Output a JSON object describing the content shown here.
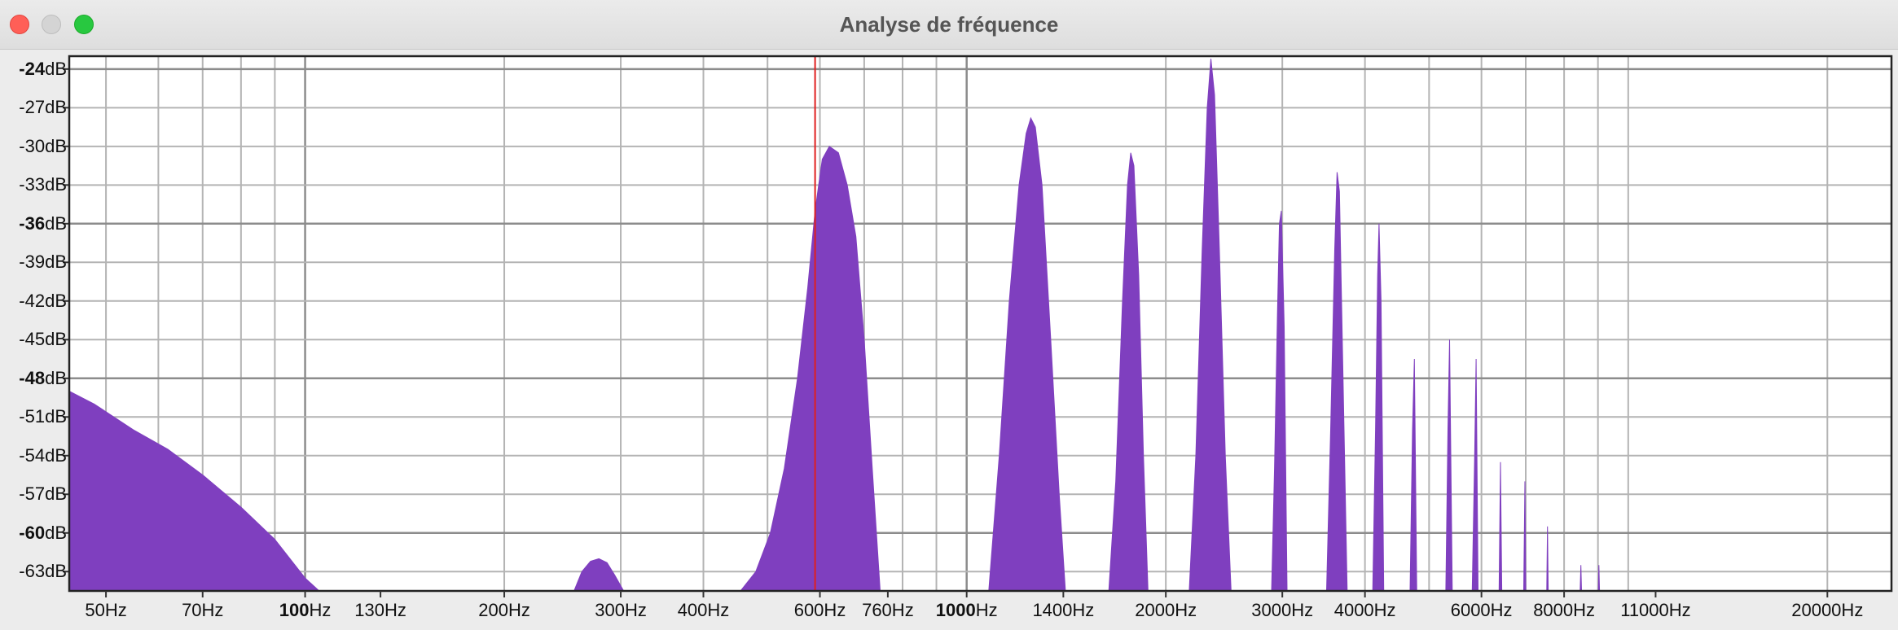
{
  "window": {
    "title": "Analyse de fréquence",
    "buttons": [
      "close",
      "minimize",
      "maximize"
    ]
  },
  "colors": {
    "fill": "#7f3fbf",
    "grid": "#b4b4b4",
    "grid_major": "#8c8c8c",
    "cursor": "#e02020",
    "plot_bg": "#ffffff"
  },
  "chart_data": {
    "type": "area",
    "scale_x": "log",
    "xlim": [
      44,
      25000
    ],
    "ylim": [
      -64.5,
      -23
    ],
    "grid": true,
    "cursor_hz": 590,
    "y_ticks": [
      {
        "value": -24,
        "num": "-24",
        "unit": "dB",
        "major": true
      },
      {
        "value": -27,
        "num": "-27",
        "unit": "dB",
        "major": false
      },
      {
        "value": -30,
        "num": "-30",
        "unit": "dB",
        "major": false
      },
      {
        "value": -33,
        "num": "-33",
        "unit": "dB",
        "major": false
      },
      {
        "value": -36,
        "num": "-36",
        "unit": "dB",
        "major": true
      },
      {
        "value": -39,
        "num": "-39",
        "unit": "dB",
        "major": false
      },
      {
        "value": -42,
        "num": "-42",
        "unit": "dB",
        "major": false
      },
      {
        "value": -45,
        "num": "-45",
        "unit": "dB",
        "major": false
      },
      {
        "value": -48,
        "num": "-48",
        "unit": "dB",
        "major": true
      },
      {
        "value": -51,
        "num": "-51",
        "unit": "dB",
        "major": false
      },
      {
        "value": -54,
        "num": "-54",
        "unit": "dB",
        "major": false
      },
      {
        "value": -57,
        "num": "-57",
        "unit": "dB",
        "major": false
      },
      {
        "value": -60,
        "num": "-60",
        "unit": "dB",
        "major": true
      },
      {
        "value": -63,
        "num": "-63",
        "unit": "dB",
        "major": false
      }
    ],
    "x_ticks": [
      {
        "value": 50,
        "num": "50",
        "unit": "Hz",
        "major": false
      },
      {
        "value": 70,
        "num": "70",
        "unit": "Hz",
        "major": false
      },
      {
        "value": 100,
        "num": "100",
        "unit": "Hz",
        "major": true
      },
      {
        "value": 130,
        "num": "130",
        "unit": "Hz",
        "major": false
      },
      {
        "value": 200,
        "num": "200",
        "unit": "Hz",
        "major": false
      },
      {
        "value": 300,
        "num": "300",
        "unit": "Hz",
        "major": false
      },
      {
        "value": 400,
        "num": "400",
        "unit": "Hz",
        "major": false
      },
      {
        "value": 600,
        "num": "600",
        "unit": "Hz",
        "major": false
      },
      {
        "value": 760,
        "num": "760",
        "unit": "Hz",
        "major": false
      },
      {
        "value": 1000,
        "num": "1000",
        "unit": "Hz",
        "major": true
      },
      {
        "value": 1400,
        "num": "1400",
        "unit": "Hz",
        "major": false
      },
      {
        "value": 2000,
        "num": "2000",
        "unit": "Hz",
        "major": false
      },
      {
        "value": 3000,
        "num": "3000",
        "unit": "Hz",
        "major": false
      },
      {
        "value": 4000,
        "num": "4000",
        "unit": "Hz",
        "major": false
      },
      {
        "value": 6000,
        "num": "6000",
        "unit": "Hz",
        "major": false
      },
      {
        "value": 8000,
        "num": "8000",
        "unit": "Hz",
        "major": false
      },
      {
        "value": 11000,
        "num": "11000",
        "unit": "Hz",
        "major": false
      },
      {
        "value": 20000,
        "num": "20000",
        "unit": "Hz",
        "major": false
      }
    ],
    "x_grid": [
      50,
      60,
      70,
      80,
      90,
      100,
      200,
      300,
      400,
      500,
      600,
      700,
      800,
      900,
      1000,
      2000,
      3000,
      4000,
      5000,
      6000,
      7000,
      8000,
      9000,
      10000,
      20000
    ],
    "series": [
      {
        "x": [
          44,
          48,
          55,
          62,
          70,
          80,
          90,
          100,
          105
        ],
        "y": [
          -49,
          -50,
          -52,
          -53.5,
          -55.5,
          -58,
          -60.5,
          -63.5,
          -64.5
        ]
      },
      {
        "x": [
          255,
          262,
          270,
          278,
          286,
          294,
          303
        ],
        "y": [
          -64.5,
          -63,
          -62.2,
          -62,
          -62.3,
          -63.3,
          -64.5
        ]
      },
      {
        "x": [
          455,
          480,
          505,
          530,
          555,
          575,
          590,
          605,
          620,
          640,
          660,
          680,
          700,
          720,
          740
        ],
        "y": [
          -64.5,
          -63,
          -60,
          -55,
          -48,
          -41,
          -35,
          -31,
          -30,
          -30.5,
          -33,
          -37,
          -45,
          -55,
          -64.5
        ]
      },
      {
        "x": [
          1080,
          1120,
          1160,
          1200,
          1230,
          1250,
          1270,
          1300,
          1340,
          1380,
          1410
        ],
        "y": [
          -64.5,
          -54,
          -42,
          -33,
          -29,
          -27.8,
          -28.5,
          -33,
          -45,
          -57,
          -64.5
        ]
      },
      {
        "x": [
          1640,
          1680,
          1720,
          1750,
          1770,
          1790,
          1820,
          1850,
          1880
        ],
        "y": [
          -64.5,
          -56,
          -42,
          -33,
          -30.5,
          -31.5,
          -40,
          -54,
          -64.5
        ]
      },
      {
        "x": [
          2170,
          2220,
          2270,
          2310,
          2340,
          2370,
          2410,
          2460,
          2510
        ],
        "y": [
          -64.5,
          -54,
          -38,
          -27,
          -23.2,
          -26,
          -38,
          -54,
          -64.5
        ]
      },
      {
        "x": [
          2890,
          2920,
          2950,
          2970,
          2990,
          3020,
          3050
        ],
        "y": [
          -64.5,
          -55,
          -43,
          -36,
          -35,
          -44,
          -64.5
        ]
      },
      {
        "x": [
          3500,
          3550,
          3600,
          3630,
          3660,
          3700,
          3760
        ],
        "y": [
          -64.5,
          -52,
          -38,
          -32,
          -33.5,
          -46,
          -64.5
        ]
      },
      {
        "x": [
          4110,
          4150,
          4180,
          4200,
          4230,
          4270
        ],
        "y": [
          -64.5,
          -52,
          -40,
          -36,
          -42,
          -64.5
        ]
      },
      {
        "x": [
          4680,
          4720,
          4750,
          4790
        ],
        "y": [
          -64.5,
          -52,
          -46.5,
          -64.5
        ]
      },
      {
        "x": [
          5300,
          5340,
          5370,
          5420
        ],
        "y": [
          -64.5,
          -52,
          -45,
          -64.5
        ]
      },
      {
        "x": [
          5810,
          5860,
          5890,
          5930
        ],
        "y": [
          -64.5,
          -54,
          -46.5,
          -64.5
        ]
      },
      {
        "x": [
          6380,
          6410,
          6440
        ],
        "y": [
          -64.5,
          -54.5,
          -64.5
        ]
      },
      {
        "x": [
          6950,
          6980,
          7000
        ],
        "y": [
          -64.5,
          -56,
          -64.5
        ]
      },
      {
        "x": [
          7530,
          7550,
          7570
        ],
        "y": [
          -64.5,
          -59.5,
          -64.5
        ]
      },
      {
        "x": [
          8460,
          8480,
          8500
        ],
        "y": [
          -64.5,
          -62.5,
          -64.5
        ]
      },
      {
        "x": [
          9010,
          9030,
          9050
        ],
        "y": [
          -64.5,
          -62.5,
          -64.5
        ]
      }
    ]
  }
}
